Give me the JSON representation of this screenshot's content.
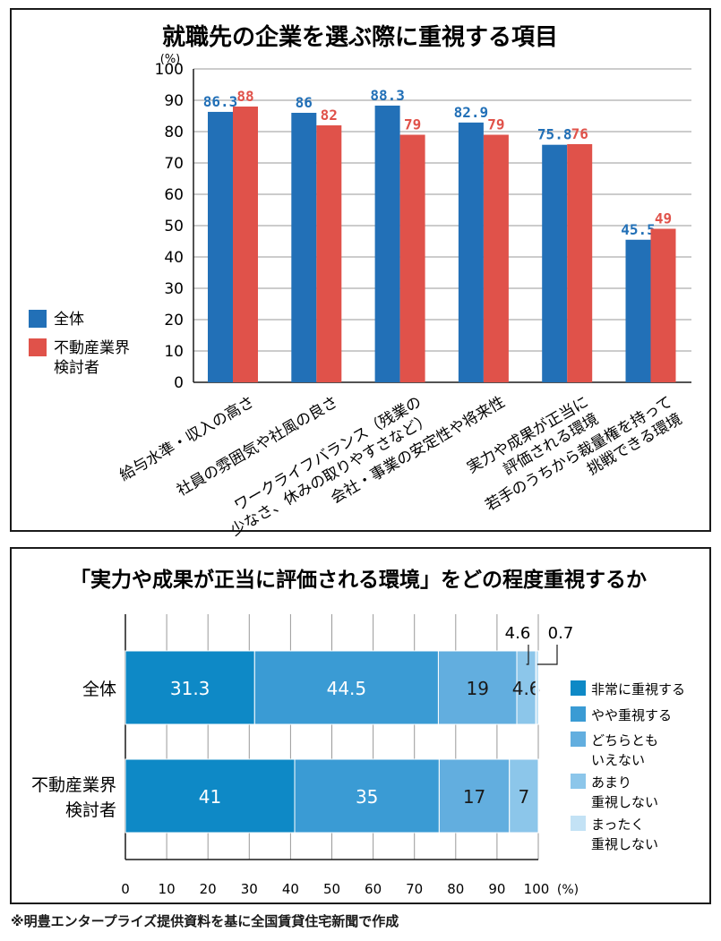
{
  "chart_data": [
    {
      "type": "bar",
      "title": "就職先の企業を選ぶ際に重視する項目",
      "yunit": "(%)",
      "ylim": [
        0,
        100
      ],
      "yticks": [
        "0",
        "10",
        "20",
        "30",
        "40",
        "50",
        "60",
        "70",
        "80",
        "90",
        "100"
      ],
      "grid": true,
      "legend": "left",
      "categories": [
        [
          "給与水準・収入の高さ"
        ],
        [
          "社員の雰囲気や社風の良さ"
        ],
        [
          "ワークライフバランス（残業の",
          "少なさ、休みの取りやすさなど）"
        ],
        [
          "会社・事業の安定性や将来性"
        ],
        [
          "実力や成果が正当に",
          "評価される環境"
        ],
        [
          "若手のうちから裁量権を持って",
          "挑戦できる環境"
        ]
      ],
      "series": [
        {
          "name": "全体",
          "values": [
            86.3,
            86,
            88.3,
            82.9,
            75.8,
            45.5
          ],
          "labels": [
            "86.3",
            "86",
            "88.3",
            "82.9",
            "75.8",
            "45.5"
          ],
          "color": "#2270b7"
        },
        {
          "name": "不動産業界検討者",
          "legend_lines": [
            "不動産業界",
            "検討者"
          ],
          "values": [
            88,
            82,
            79,
            79,
            76,
            49
          ],
          "labels": [
            "88",
            "82",
            "79",
            "79",
            "76",
            "49"
          ],
          "color": "#e0524a"
        }
      ]
    },
    {
      "type": "bar",
      "orientation": "horizontal",
      "stacked": true,
      "title": "「実力や成果が正当に評価される環境」をどの程度重視するか",
      "xunit": "(%)",
      "xlim": [
        0,
        100
      ],
      "xticks": [
        "0",
        "10",
        "20",
        "30",
        "40",
        "50",
        "60",
        "70",
        "80",
        "90",
        "100"
      ],
      "grid": true,
      "legend": "right",
      "categories": [
        [
          "全体"
        ],
        [
          "不動産業界",
          "検討者"
        ]
      ],
      "series": [
        {
          "name": "非常に重視する",
          "legend_lines": [
            "非常に重視する"
          ],
          "values": [
            31.3,
            41
          ],
          "labels": [
            "31.3",
            "41"
          ],
          "color": "#0e89c6"
        },
        {
          "name": "やや重視する",
          "legend_lines": [
            "やや重視する"
          ],
          "values": [
            44.5,
            35
          ],
          "labels": [
            "44.5",
            "35"
          ],
          "color": "#3a9bd4"
        },
        {
          "name": "どちらともいえない",
          "legend_lines": [
            "どちらとも",
            "いえない"
          ],
          "values": [
            19,
            17
          ],
          "labels": [
            "19",
            "17"
          ],
          "color": "#62aedf"
        },
        {
          "name": "あまり重視しない",
          "legend_lines": [
            "あまり",
            "重視しない"
          ],
          "values": [
            4.6,
            7
          ],
          "labels": [
            "4.6",
            "7"
          ],
          "color": "#8cc6ea"
        },
        {
          "name": "まったく重視しない",
          "legend_lines": [
            "まったく",
            "重視しない"
          ],
          "values": [
            0.7,
            0
          ],
          "labels": [
            "0.7",
            ""
          ],
          "color": "#c3e2f5"
        }
      ]
    }
  ],
  "footnote": "※明豊エンタープライズ提供資料を基に全国賃貸住宅新聞で作成"
}
